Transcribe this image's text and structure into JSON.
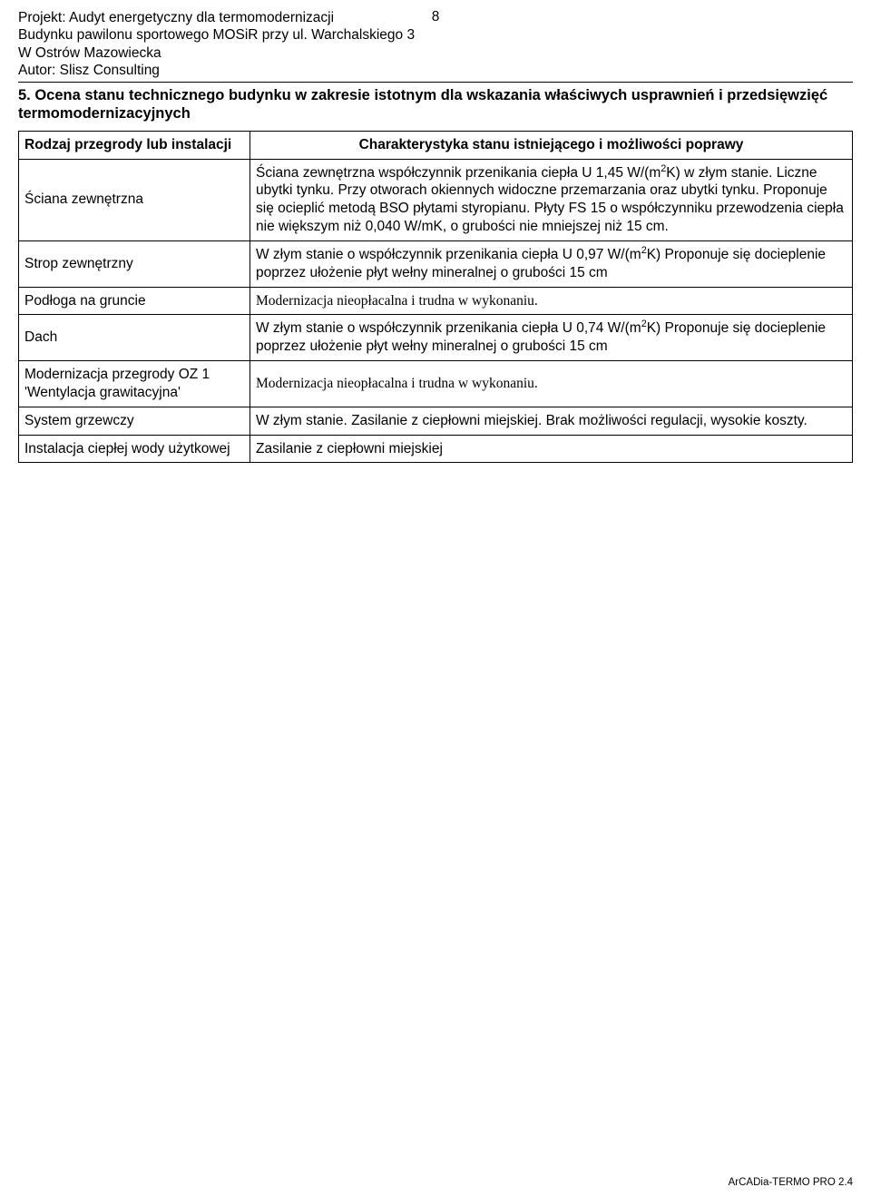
{
  "header": {
    "line1": "Projekt: Audyt energetyczny dla termomodernizacji",
    "line2": "Budynku pawilonu sportowego MOSiR przy ul. Warchalskiego 3",
    "line3": "W Ostrów Mazowiecka",
    "line4": "Autor: Slisz Consulting",
    "page_number": "8"
  },
  "section_title": "5. Ocena stanu technicznego budynku w zakresie istotnym dla wskazania właściwych usprawnień i przedsięwzięć termomodernizacyjnych",
  "table": {
    "header": {
      "col1": "Rodzaj przegrody lub instalacji",
      "col2": "Charakterystyka stanu istniejącego i możliwości poprawy"
    },
    "rows": [
      {
        "label": "Ściana zewnętrzna",
        "desc_pre": "Ściana zewnętrzna współczynnik przenikania ciepła U 1,45 W/(m",
        "desc_post": "K) w złym stanie. Liczne ubytki tynku. Przy otworach okiennych widoczne przemarzania oraz ubytki tynku. Proponuje się ocieplić metodą BSO płytami styropianu. Płyty FS 15 o współczynniku przewodzenia ciepła nie większym niż 0,040 W/mK, o grubości nie mniejszej niż 15 cm.",
        "has_sup": true,
        "serif": false
      },
      {
        "label": "Strop zewnętrzny",
        "desc_pre": "W złym stanie o współczynnik przenikania ciepła U 0,97 W/(m",
        "desc_post": "K) Proponuje się docieplenie poprzez ułożenie płyt wełny mineralnej o grubości 15 cm",
        "has_sup": true,
        "serif": false
      },
      {
        "label": "Podłoga na gruncie",
        "desc_pre": "Modernizacja nieopłacalna i trudna w wykonaniu.",
        "desc_post": "",
        "has_sup": false,
        "serif": true
      },
      {
        "label": "Dach",
        "desc_pre": "W złym stanie o współczynnik przenikania ciepła U 0,74 W/(m",
        "desc_post": "K) Proponuje się docieplenie poprzez ułożenie płyt wełny mineralnej o grubości 15 cm",
        "has_sup": true,
        "serif": false
      },
      {
        "label": "Modernizacja przegrody OZ 1 'Wentylacja grawitacyjna'",
        "desc_pre": "Modernizacja nieopłacalna i trudna w wykonaniu.",
        "desc_post": "",
        "has_sup": false,
        "serif": true
      },
      {
        "label": "System grzewczy",
        "desc_pre": "W złym stanie. Zasilanie z ciepłowni miejskiej. Brak możliwości regulacji, wysokie koszty.",
        "desc_post": "",
        "has_sup": false,
        "serif": false
      },
      {
        "label": "Instalacja ciepłej wody użytkowej",
        "desc_pre": "Zasilanie z ciepłowni miejskiej",
        "desc_post": "",
        "has_sup": false,
        "serif": false
      }
    ]
  },
  "footer": "ArCADia-TERMO PRO 2.4"
}
